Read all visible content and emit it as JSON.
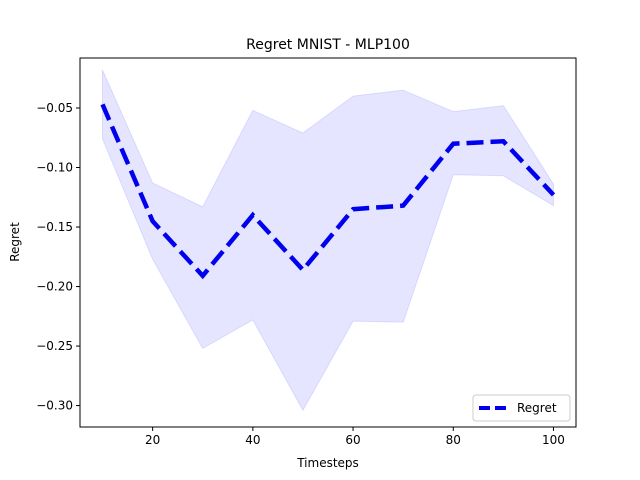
{
  "chart_data": {
    "type": "line",
    "title": "Regret MNIST - MLP100",
    "xlabel": "Timesteps",
    "ylabel": "Regret",
    "xlim": [
      5.5,
      104.5
    ],
    "ylim": [
      -0.318,
      -0.008
    ],
    "x_ticks": [
      20,
      40,
      60,
      80,
      100
    ],
    "y_ticks": [
      -0.3,
      -0.25,
      -0.2,
      -0.15,
      -0.1,
      -0.05
    ],
    "y_tick_labels": [
      "−0.30",
      "−0.25",
      "−0.20",
      "−0.15",
      "−0.10",
      "−0.05"
    ],
    "x_tick_labels": [
      "20",
      "40",
      "60",
      "80",
      "100"
    ],
    "grid": false,
    "legend_position": "lower-right",
    "x": [
      10,
      20,
      30,
      40,
      50,
      60,
      70,
      80,
      90,
      100
    ],
    "series": [
      {
        "name": "Regret",
        "values": [
          -0.047,
          -0.145,
          -0.191,
          -0.14,
          -0.186,
          -0.135,
          -0.132,
          -0.08,
          -0.078,
          -0.123
        ],
        "upper": [
          -0.018,
          -0.113,
          -0.133,
          -0.052,
          -0.071,
          -0.04,
          -0.035,
          -0.053,
          -0.048,
          -0.114
        ],
        "lower": [
          -0.076,
          -0.177,
          -0.252,
          -0.228,
          -0.304,
          -0.229,
          -0.23,
          -0.106,
          -0.107,
          -0.132
        ],
        "color": "#0000ee",
        "band_color": "#0000ff",
        "style": "dashed"
      }
    ]
  }
}
